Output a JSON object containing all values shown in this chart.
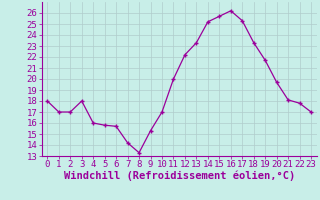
{
  "x": [
    0,
    1,
    2,
    3,
    4,
    5,
    6,
    7,
    8,
    9,
    10,
    11,
    12,
    13,
    14,
    15,
    16,
    17,
    18,
    19,
    20,
    21,
    22,
    23
  ],
  "y": [
    18,
    17,
    17,
    18,
    16,
    15.8,
    15.7,
    14.2,
    13.3,
    15.3,
    17,
    20,
    22.2,
    23.3,
    25.2,
    25.7,
    26.2,
    25.3,
    23.3,
    21.7,
    19.7,
    18.1,
    17.8,
    17
  ],
  "line_color": "#9b009b",
  "marker": "+",
  "marker_color": "#9b009b",
  "bg_color": "#c8eee8",
  "grid_color": "#b0cccc",
  "xlabel": "Windchill (Refroidissement éolien,°C)",
  "xlabel_color": "#9b009b",
  "tick_color": "#9b009b",
  "spine_color": "#9b009b",
  "ylim": [
    13,
    27
  ],
  "xlim": [
    -0.5,
    23.5
  ],
  "yticks": [
    13,
    14,
    15,
    16,
    17,
    18,
    19,
    20,
    21,
    22,
    23,
    24,
    25,
    26
  ],
  "xticks": [
    0,
    1,
    2,
    3,
    4,
    5,
    6,
    7,
    8,
    9,
    10,
    11,
    12,
    13,
    14,
    15,
    16,
    17,
    18,
    19,
    20,
    21,
    22,
    23
  ],
  "font_size": 6.5,
  "xlabel_fontsize": 7.5
}
